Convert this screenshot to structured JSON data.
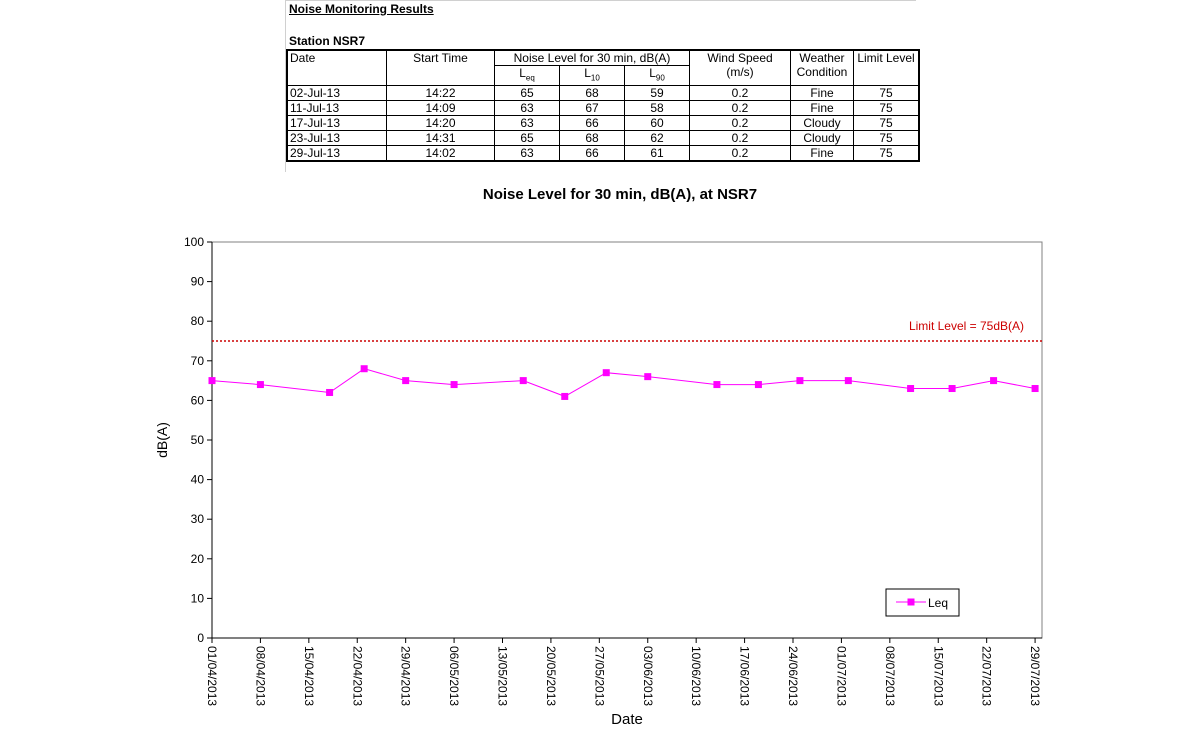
{
  "header": {
    "title": "Noise Monitoring Results",
    "station": "Station NSR7"
  },
  "table": {
    "col_date": "Date",
    "col_start": "Start Time",
    "col_noise": "Noise Level for 30 min, dB(A)",
    "col_leq_main": "L",
    "col_leq_sub": "eq",
    "col_l10_main": "L",
    "col_l10_sub": "10",
    "col_l90_main": "L",
    "col_l90_sub": "90",
    "col_wind": "Wind Speed",
    "col_wind_unit": "(m/s)",
    "col_weather": "Weather",
    "col_weather2": "Condition",
    "col_limit": "Limit Level",
    "rows": [
      {
        "date": "02-Jul-13",
        "start": "14:22",
        "leq": "65",
        "l10": "68",
        "l90": "59",
        "wind": "0.2",
        "weather": "Fine",
        "limit": "75"
      },
      {
        "date": "11-Jul-13",
        "start": "14:09",
        "leq": "63",
        "l10": "67",
        "l90": "58",
        "wind": "0.2",
        "weather": "Fine",
        "limit": "75"
      },
      {
        "date": "17-Jul-13",
        "start": "14:20",
        "leq": "63",
        "l10": "66",
        "l90": "60",
        "wind": "0.2",
        "weather": "Cloudy",
        "limit": "75"
      },
      {
        "date": "23-Jul-13",
        "start": "14:31",
        "leq": "65",
        "l10": "68",
        "l90": "62",
        "wind": "0.2",
        "weather": "Cloudy",
        "limit": "75"
      },
      {
        "date": "29-Jul-13",
        "start": "14:02",
        "leq": "63",
        "l10": "66",
        "l90": "61",
        "wind": "0.2",
        "weather": "Fine",
        "limit": "75"
      }
    ]
  },
  "chart_data": {
    "type": "line",
    "title": "Noise Level for 30 min, dB(A), at NSR7",
    "xlabel": "Date",
    "ylabel": "dB(A)",
    "ylim": [
      0,
      100
    ],
    "yticks": [
      "0",
      "10",
      "20",
      "30",
      "40",
      "50",
      "60",
      "70",
      "80",
      "90",
      "100"
    ],
    "xlim": [
      "01/04/2013",
      "30/07/2013"
    ],
    "xticks": [
      "01/04/2013",
      "08/04/2013",
      "15/04/2013",
      "22/04/2013",
      "29/04/2013",
      "06/05/2013",
      "13/05/2013",
      "20/05/2013",
      "27/05/2013",
      "03/06/2013",
      "10/06/2013",
      "17/06/2013",
      "24/06/2013",
      "01/07/2013",
      "08/07/2013",
      "15/07/2013",
      "22/07/2013",
      "29/07/2013"
    ],
    "grid": false,
    "legend": "bottom-right",
    "series": [
      {
        "name": "Leq",
        "color": "#ff00ff",
        "points": [
          {
            "x": "01/04/2013",
            "y": 65
          },
          {
            "x": "08/04/2013",
            "y": 64
          },
          {
            "x": "18/04/2013",
            "y": 62
          },
          {
            "x": "23/04/2013",
            "y": 68
          },
          {
            "x": "29/04/2013",
            "y": 65
          },
          {
            "x": "06/05/2013",
            "y": 64
          },
          {
            "x": "16/05/2013",
            "y": 65
          },
          {
            "x": "22/05/2013",
            "y": 61
          },
          {
            "x": "28/05/2013",
            "y": 67
          },
          {
            "x": "03/06/2013",
            "y": 66
          },
          {
            "x": "13/06/2013",
            "y": 64
          },
          {
            "x": "19/06/2013",
            "y": 64
          },
          {
            "x": "25/06/2013",
            "y": 65
          },
          {
            "x": "02/07/2013",
            "y": 65
          },
          {
            "x": "11/07/2013",
            "y": 63
          },
          {
            "x": "17/07/2013",
            "y": 63
          },
          {
            "x": "23/07/2013",
            "y": 65
          },
          {
            "x": "29/07/2013",
            "y": 63
          }
        ]
      }
    ],
    "limit_line": {
      "value": 75,
      "label": "Limit Level  = 75dB(A)",
      "color": "#cc0000"
    }
  }
}
